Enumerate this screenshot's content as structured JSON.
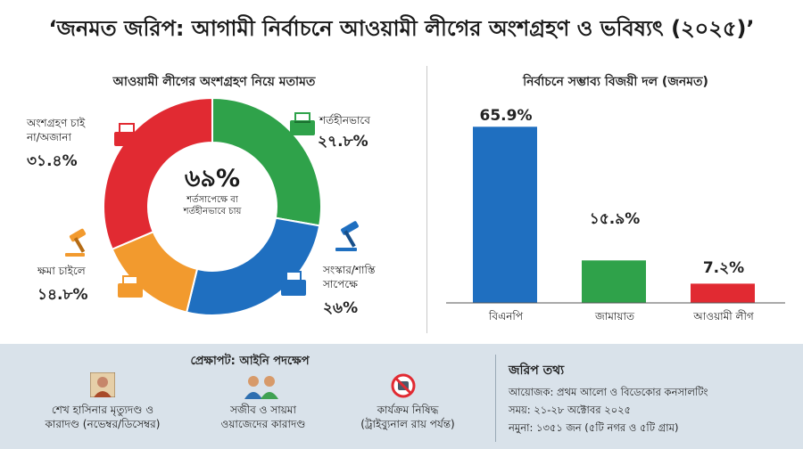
{
  "title": "‘জনমত জরিপ: আগামী নির্বাচনে আওয়ামী লীগের অংশগ্রহণ ও ভবিষ্যৎ (২০২৫)’",
  "left_heading": "আওয়ামী লীগের অংশগ্রহণ নিয়ে মতামত",
  "right_heading": "নির্বাচনে সম্ভাব্য বিজয়ী দল (জনমত)",
  "donut_center": {
    "value": "৬৯%",
    "caption_line1": "শর্তসাপেক্ষে বা",
    "caption_line2": "শর্তহীনভাবে চায়"
  },
  "chart_data": [
    {
      "type": "pie",
      "title": "আওয়ামী লীগের অংশগ্রহণ নিয়ে মতামত",
      "segments": [
        {
          "label": "শর্তহীনভাবে",
          "value": 27.8,
          "value_text": "২৭.৮%",
          "color": "#2fa24a"
        },
        {
          "label_line1": "সংস্কার/শাস্তি",
          "label_line2": "সাপেক্ষে",
          "value": 26,
          "value_text": "২৬%",
          "color": "#1f6fc0"
        },
        {
          "label": "ক্ষমা চাইলে",
          "value": 14.8,
          "value_text": "১৪.৮%",
          "color": "#f29a2e"
        },
        {
          "label_line1": "অংশগ্রহণ চাই",
          "label_line2": "না/অজানা",
          "value": 31.4,
          "value_text": "৩১.৪%",
          "color": "#e12a32"
        }
      ],
      "other_color": "#b8b8b8"
    },
    {
      "type": "bar",
      "title": "নির্বাচনে সম্ভাব্য বিজয়ী দল (জনমত)",
      "categories": [
        "বিএনপি",
        "জামায়াত",
        "আওয়ামী লীগ"
      ],
      "values": [
        65.9,
        15.9,
        7.2
      ],
      "value_labels": [
        "65.9%",
        "১৫.৯%",
        "7.২%"
      ],
      "colors": [
        "#1f6fc0",
        "#2fa24a",
        "#e12a32"
      ],
      "ylim": [
        0,
        70
      ]
    }
  ],
  "legal": {
    "heading": "প্রেক্ষাপট: আইনি পদক্ষেপ",
    "items": [
      {
        "line1": "শেখ হাসিনার মৃত্যুদণ্ড ও",
        "line2": "কারাদণ্ড (নভেম্বর/ডিসেম্বর)"
      },
      {
        "line1": "সজীব ও সায়মা",
        "line2": "ওয়াজেদের কারাদণ্ড"
      },
      {
        "line1": "কার্যক্রম নিষিদ্ধ",
        "line2": "(ট্রাইব্যুনাল রায় পর্যন্ত)"
      }
    ]
  },
  "survey": {
    "heading": "জরিপ তথ্য",
    "lines": [
      "আয়োজক: প্রথম আলো ও বিডেকোর কনসালটিং",
      "সময়: ২১-২৮ অক্টোবর ২০২৫",
      "নমুনা: ১৩৫১ জন (৫টি নগর ও ৫টি গ্রাম)"
    ]
  }
}
